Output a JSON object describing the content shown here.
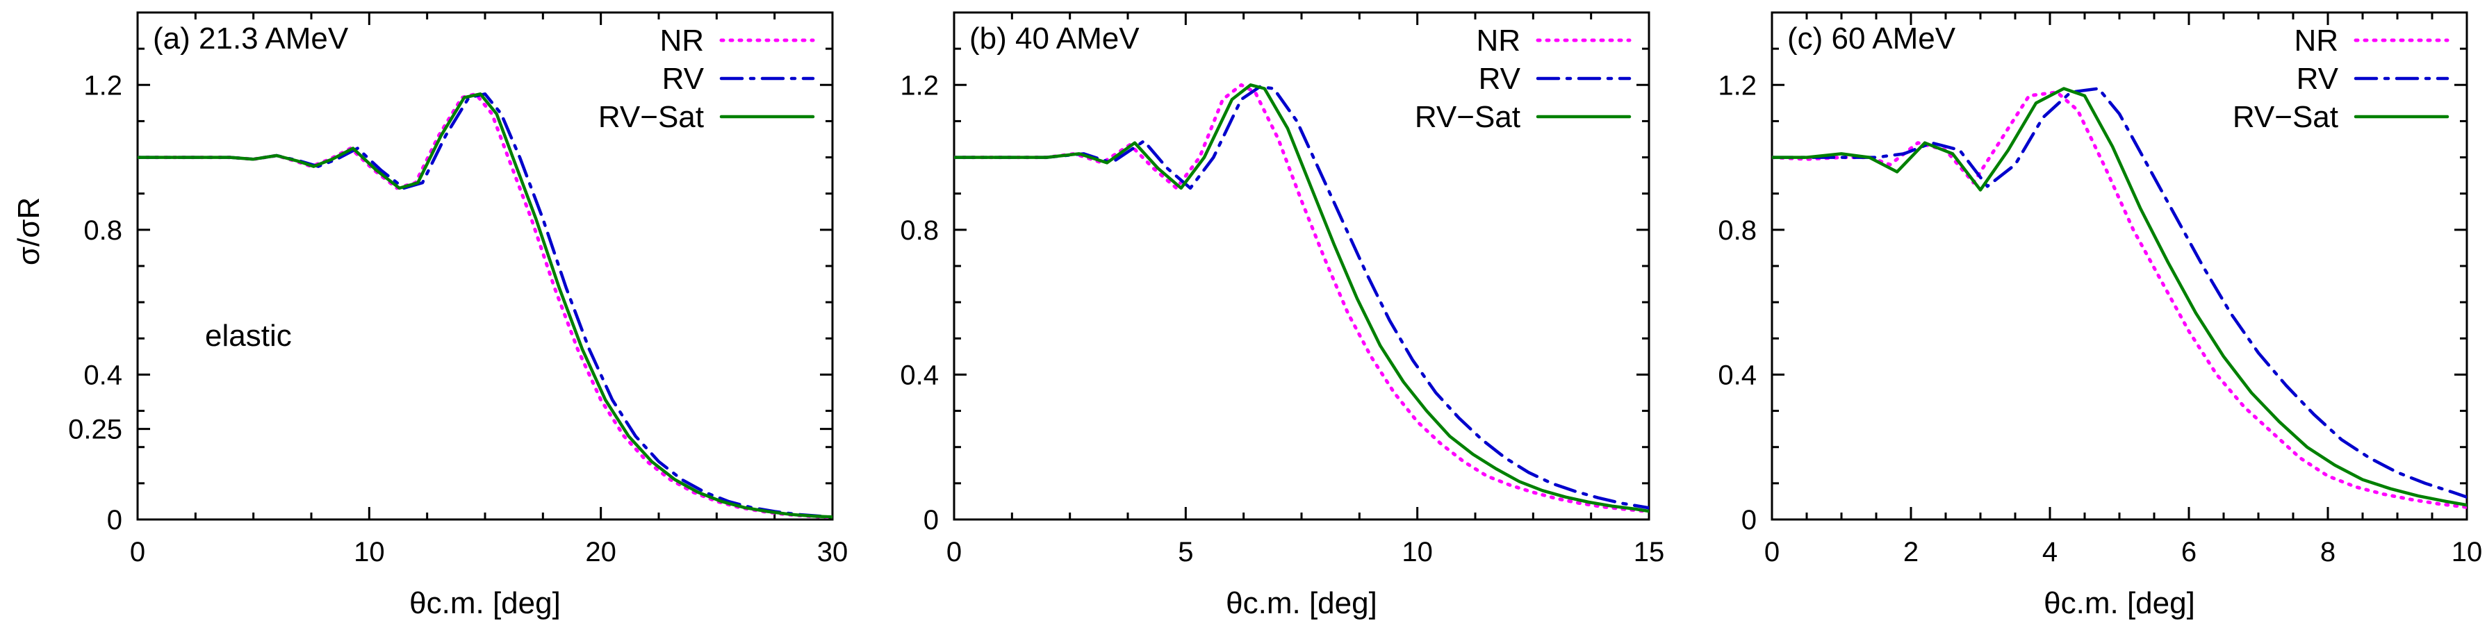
{
  "chart_data": [
    {
      "type": "line",
      "title": "(a) 21.3 AMeV",
      "xlabel": "θc.m. [deg]",
      "ylabel": "σ/σR",
      "xlim": [
        0,
        30
      ],
      "ylim": [
        0,
        1.4
      ],
      "xticks": [
        0,
        10,
        20,
        30
      ],
      "yticks": [
        0,
        0.25,
        0.4,
        0.8,
        1.2
      ],
      "ytick_labels": [
        "0",
        "0.25",
        "0.4",
        "0.8",
        "1.2"
      ],
      "annotation": "elastic",
      "legend_position": "top-right",
      "series": [
        {
          "name": "NR",
          "style": "dotted",
          "color": "#ff00ff",
          "x": [
            0,
            2,
            4,
            5,
            6,
            6.8,
            7.5,
            8.3,
            9.2,
            10.2,
            11.2,
            12,
            13,
            14,
            14.6,
            15.3,
            16,
            17,
            18,
            19,
            20,
            21,
            22,
            23,
            24,
            25,
            26,
            27,
            28,
            29,
            30
          ],
          "y": [
            1.0,
            1.0,
            1.0,
            0.995,
            1.005,
            0.99,
            0.975,
            0.995,
            1.025,
            0.965,
            0.915,
            0.93,
            1.06,
            1.165,
            1.175,
            1.12,
            1.0,
            0.83,
            0.64,
            0.47,
            0.33,
            0.23,
            0.16,
            0.11,
            0.075,
            0.05,
            0.033,
            0.022,
            0.014,
            0.009,
            0.006
          ]
        },
        {
          "name": "RV",
          "style": "dash-dot",
          "color": "#0000cc",
          "x": [
            0,
            2,
            4,
            5,
            6,
            7,
            7.8,
            8.6,
            9.5,
            10.5,
            11.5,
            12.3,
            13.3,
            14.3,
            15,
            15.7,
            16.5,
            17.5,
            18.5,
            19.5,
            20.5,
            21.5,
            22.5,
            23.5,
            24.5,
            25.5,
            26.5,
            27.5,
            28.5,
            29.5,
            30
          ],
          "y": [
            1.0,
            1.0,
            1.0,
            0.995,
            1.005,
            0.99,
            0.975,
            0.995,
            1.025,
            0.965,
            0.915,
            0.93,
            1.06,
            1.165,
            1.175,
            1.12,
            1.0,
            0.83,
            0.64,
            0.47,
            0.33,
            0.23,
            0.16,
            0.11,
            0.075,
            0.05,
            0.033,
            0.022,
            0.014,
            0.009,
            0.007
          ]
        },
        {
          "name": "RV−Sat",
          "style": "solid",
          "color": "#008000",
          "x": [
            0,
            2,
            4,
            5,
            6,
            6.9,
            7.6,
            8.4,
            9.3,
            10.3,
            11.3,
            12.1,
            13.1,
            14.1,
            14.8,
            15.5,
            16.2,
            17.2,
            18.2,
            19.2,
            20.2,
            21.2,
            22.2,
            23.2,
            24.2,
            25.2,
            26.2,
            27.2,
            28.2,
            29.2,
            30
          ],
          "y": [
            1.0,
            1.0,
            1.0,
            0.995,
            1.005,
            0.99,
            0.975,
            0.995,
            1.025,
            0.965,
            0.915,
            0.93,
            1.06,
            1.165,
            1.175,
            1.12,
            1.0,
            0.83,
            0.64,
            0.47,
            0.33,
            0.23,
            0.16,
            0.11,
            0.075,
            0.05,
            0.033,
            0.022,
            0.014,
            0.009,
            0.007
          ]
        }
      ]
    },
    {
      "type": "line",
      "title": "(b) 40 AMeV",
      "xlabel": "θc.m. [deg]",
      "ylabel": "",
      "xlim": [
        0,
        15
      ],
      "ylim": [
        0,
        1.4
      ],
      "xticks": [
        0,
        5,
        10,
        15
      ],
      "yticks": [
        0,
        0.4,
        0.8,
        1.2
      ],
      "ytick_labels": [
        "0",
        "0.4",
        "0.8",
        "1.2"
      ],
      "legend_position": "top-right",
      "series": [
        {
          "name": "NR",
          "style": "dotted",
          "color": "#ff00ff",
          "x": [
            0,
            1,
            2,
            2.6,
            3.2,
            3.8,
            4.3,
            4.8,
            5.3,
            5.8,
            6.2,
            6.5,
            7,
            7.5,
            8,
            8.5,
            9,
            9.5,
            10,
            10.5,
            11,
            11.5,
            12,
            12.5,
            13,
            13.5,
            14,
            14.5,
            15
          ],
          "y": [
            1.0,
            1.0,
            1.0,
            1.01,
            0.985,
            1.035,
            0.97,
            0.915,
            1.0,
            1.16,
            1.2,
            1.18,
            1.05,
            0.88,
            0.72,
            0.57,
            0.45,
            0.35,
            0.27,
            0.21,
            0.16,
            0.12,
            0.095,
            0.075,
            0.058,
            0.045,
            0.035,
            0.028,
            0.022
          ]
        },
        {
          "name": "RV",
          "style": "dash-dot",
          "color": "#0000cc",
          "x": [
            0,
            1,
            2,
            2.8,
            3.4,
            4.1,
            4.6,
            5.1,
            5.6,
            6.2,
            6.6,
            6.9,
            7.4,
            7.9,
            8.4,
            8.9,
            9.4,
            9.9,
            10.4,
            10.9,
            11.4,
            11.9,
            12.4,
            12.9,
            13.4,
            13.9,
            14.4,
            15
          ],
          "y": [
            1.0,
            1.0,
            1.0,
            1.01,
            0.985,
            1.045,
            0.97,
            0.915,
            1.0,
            1.16,
            1.195,
            1.19,
            1.1,
            0.96,
            0.82,
            0.68,
            0.55,
            0.44,
            0.35,
            0.28,
            0.22,
            0.17,
            0.13,
            0.1,
            0.078,
            0.06,
            0.045,
            0.032
          ]
        },
        {
          "name": "RV−Sat",
          "style": "solid",
          "color": "#008000",
          "x": [
            0,
            1,
            2,
            2.7,
            3.3,
            3.9,
            4.4,
            4.9,
            5.4,
            6,
            6.4,
            6.7,
            7.2,
            7.7,
            8.2,
            8.7,
            9.2,
            9.7,
            10.2,
            10.7,
            11.2,
            11.7,
            12.2,
            12.7,
            13.2,
            13.7,
            14.2,
            14.7,
            15
          ],
          "y": [
            1.0,
            1.0,
            1.0,
            1.01,
            0.985,
            1.04,
            0.97,
            0.915,
            1.0,
            1.16,
            1.2,
            1.19,
            1.08,
            0.92,
            0.76,
            0.61,
            0.48,
            0.38,
            0.3,
            0.23,
            0.18,
            0.14,
            0.105,
            0.08,
            0.062,
            0.048,
            0.037,
            0.029,
            0.023
          ]
        }
      ]
    },
    {
      "type": "line",
      "title": "(c) 60 AMeV",
      "xlabel": "θc.m. [deg]",
      "ylabel": "",
      "xlim": [
        0,
        10
      ],
      "ylim": [
        0,
        1.4
      ],
      "xticks": [
        0,
        2,
        4,
        6,
        8,
        10
      ],
      "yticks": [
        0,
        0.4,
        0.8,
        1.2
      ],
      "ytick_labels": [
        "0",
        "0.4",
        "0.8",
        "1.2"
      ],
      "legend_position": "top-right",
      "series": [
        {
          "name": "NR",
          "style": "dotted",
          "color": "#ff00ff",
          "x": [
            0,
            0.5,
            1,
            1.4,
            1.7,
            2.1,
            2.5,
            2.9,
            3.3,
            3.7,
            4.1,
            4.4,
            4.8,
            5.2,
            5.6,
            6,
            6.4,
            6.8,
            7.2,
            7.6,
            8,
            8.4,
            8.8,
            9.2,
            9.6,
            10
          ],
          "y": [
            1.0,
            0.995,
            1.0,
            1.0,
            0.98,
            1.04,
            1.02,
            0.93,
            1.05,
            1.17,
            1.18,
            1.13,
            0.97,
            0.8,
            0.66,
            0.52,
            0.4,
            0.31,
            0.24,
            0.17,
            0.12,
            0.09,
            0.07,
            0.055,
            0.043,
            0.034
          ]
        },
        {
          "name": "RV",
          "style": "dash-dot",
          "color": "#0000cc",
          "x": [
            0,
            0.5,
            1,
            1.5,
            1.9,
            2.3,
            2.7,
            3.1,
            3.5,
            3.9,
            4.3,
            4.7,
            5,
            5.4,
            5.8,
            6.2,
            6.6,
            7,
            7.4,
            7.8,
            8.2,
            8.6,
            9,
            9.4,
            9.8,
            10
          ],
          "y": [
            1.0,
            1.0,
            1.0,
            1.0,
            1.01,
            1.04,
            1.02,
            0.92,
            0.98,
            1.11,
            1.18,
            1.19,
            1.12,
            0.98,
            0.84,
            0.7,
            0.57,
            0.46,
            0.37,
            0.29,
            0.22,
            0.17,
            0.13,
            0.1,
            0.075,
            0.062
          ]
        },
        {
          "name": "RV−Sat",
          "style": "solid",
          "color": "#008000",
          "x": [
            0,
            0.5,
            1,
            1.4,
            1.8,
            2.2,
            2.6,
            3,
            3.4,
            3.8,
            4.2,
            4.5,
            4.9,
            5.3,
            5.7,
            6.1,
            6.5,
            6.9,
            7.3,
            7.7,
            8.1,
            8.5,
            8.9,
            9.3,
            9.7,
            10
          ],
          "y": [
            1.0,
            1.0,
            1.01,
            1.0,
            0.96,
            1.04,
            1.01,
            0.91,
            1.02,
            1.15,
            1.19,
            1.17,
            1.03,
            0.86,
            0.71,
            0.57,
            0.45,
            0.35,
            0.27,
            0.2,
            0.15,
            0.11,
            0.085,
            0.065,
            0.05,
            0.04
          ]
        }
      ]
    }
  ]
}
